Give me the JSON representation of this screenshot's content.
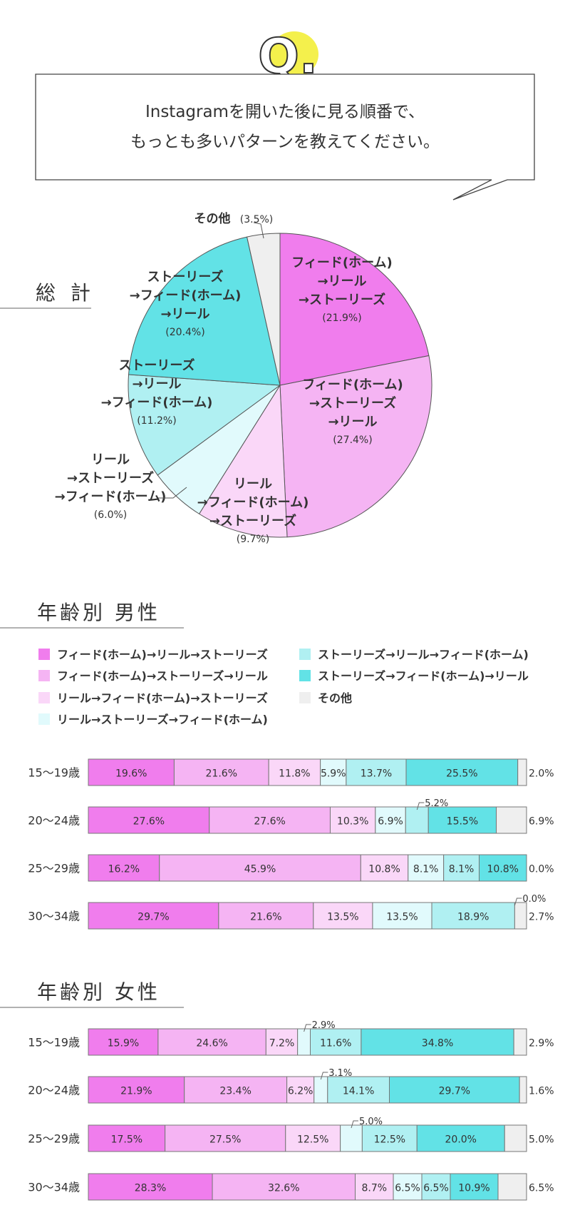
{
  "question": {
    "badge": "Q.",
    "line1": "Instagramを開いた後に見る順番で、",
    "line2": "もっとも多いパターンを教えてください。"
  },
  "sections": {
    "total": "総 計",
    "male": "年齢別 男性",
    "female": "年齢別 女性"
  },
  "colors": {
    "A": "#f07ded",
    "B": "#f5b4f3",
    "C": "#fad7f8",
    "D": "#e1fafc",
    "E": "#b0f0f2",
    "F": "#62e2e6",
    "G": "#efefef"
  },
  "legend": [
    {
      "key": "A",
      "label": "フィード(ホーム)→リール→ストーリーズ"
    },
    {
      "key": "B",
      "label": "フィード(ホーム)→ストーリーズ→リール"
    },
    {
      "key": "C",
      "label": "リール→フィード(ホーム)→ストーリーズ"
    },
    {
      "key": "D",
      "label": "リール→ストーリーズ→フィード(ホーム)"
    },
    {
      "key": "E",
      "label": "ストーリーズ→リール→フィード(ホーム)"
    },
    {
      "key": "F",
      "label": "ストーリーズ→フィード(ホーム)→リール"
    },
    {
      "key": "G",
      "label": "その他"
    }
  ],
  "chart_data": [
    {
      "type": "pie",
      "slices": [
        {
          "key": "A",
          "value": 21.9,
          "lines": [
            "フィード(ホーム)",
            "→リール",
            "→ストーリーズ"
          ],
          "pct": "(21.9%)"
        },
        {
          "key": "B",
          "value": 27.4,
          "lines": [
            "フィード(ホーム)",
            "→ストーリーズ",
            "→リール"
          ],
          "pct": "(27.4%)"
        },
        {
          "key": "C",
          "value": 9.7,
          "lines": [
            "リール",
            "→フィード(ホーム)",
            "→ストーリーズ"
          ],
          "pct": "(9.7%)"
        },
        {
          "key": "D",
          "value": 6.0,
          "lines": [
            "リール",
            "→ストーリーズ",
            "→フィード(ホーム)"
          ],
          "pct": "(6.0%)"
        },
        {
          "key": "E",
          "value": 11.2,
          "lines": [
            "ストーリーズ",
            "→リール",
            "→フィード(ホーム)"
          ],
          "pct": "(11.2%)"
        },
        {
          "key": "F",
          "value": 20.4,
          "lines": [
            "ストーリーズ",
            "→フィード(ホーム)",
            "→リール"
          ],
          "pct": "(20.4%)"
        },
        {
          "key": "G",
          "value": 3.5,
          "lines": [
            "その他"
          ],
          "pct": "(3.5%)"
        }
      ]
    },
    {
      "type": "bar",
      "stacked": true,
      "horizontal": true,
      "group": "male",
      "keys": [
        "A",
        "B",
        "C",
        "D",
        "E",
        "F",
        "G"
      ],
      "rows": [
        {
          "label": "15〜19歳",
          "values": [
            19.6,
            21.6,
            11.8,
            5.9,
            13.7,
            25.5,
            2.0
          ]
        },
        {
          "label": "20〜24歳",
          "values": [
            27.6,
            27.6,
            10.3,
            6.9,
            5.2,
            15.5,
            6.9
          ]
        },
        {
          "label": "25〜29歳",
          "values": [
            16.2,
            45.9,
            10.8,
            8.1,
            8.1,
            10.8,
            0.0
          ]
        },
        {
          "label": "30〜34歳",
          "values": [
            29.7,
            21.6,
            13.5,
            13.5,
            18.9,
            0.0,
            2.7
          ]
        }
      ]
    },
    {
      "type": "bar",
      "stacked": true,
      "horizontal": true,
      "group": "female",
      "keys": [
        "A",
        "B",
        "C",
        "D",
        "E",
        "F",
        "G"
      ],
      "rows": [
        {
          "label": "15〜19歳",
          "values": [
            15.9,
            24.6,
            7.2,
            2.9,
            11.6,
            34.8,
            2.9
          ]
        },
        {
          "label": "20〜24歳",
          "values": [
            21.9,
            23.4,
            6.2,
            3.1,
            14.1,
            29.7,
            1.6
          ]
        },
        {
          "label": "25〜29歳",
          "values": [
            17.5,
            27.5,
            12.5,
            5.0,
            12.5,
            20.0,
            5.0
          ]
        },
        {
          "label": "30〜34歳",
          "values": [
            28.3,
            32.6,
            8.7,
            6.5,
            6.5,
            10.9,
            6.5
          ]
        }
      ]
    }
  ]
}
